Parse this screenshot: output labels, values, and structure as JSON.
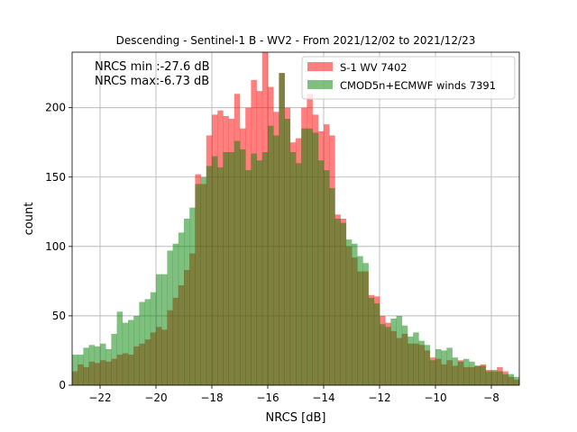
{
  "chart_data": {
    "type": "bar",
    "title": "Descending - Sentinel-1 B - WV2 - From 2021/12/02 to 2021/12/23",
    "xlabel": "NRCS [dB]",
    "ylabel": "count",
    "xlim": [
      -23.0,
      -7.0
    ],
    "ylim": [
      0,
      240
    ],
    "xticks": [
      -22,
      -20,
      -18,
      -16,
      -14,
      -12,
      -10,
      -8
    ],
    "xtick_labels": [
      "−22",
      "−20",
      "−18",
      "−16",
      "−14",
      "−12",
      "−10",
      "−8"
    ],
    "yticks": [
      0,
      50,
      100,
      150,
      200
    ],
    "ytick_labels": [
      "0",
      "50",
      "100",
      "150",
      "200"
    ],
    "grid": true,
    "legend_position": "top-right",
    "annotations": [
      "NRCS min :-27.6 dB",
      "NRCS max:-6.73 dB"
    ],
    "bin_width": 0.2,
    "x": [
      -22.9,
      -22.7,
      -22.5,
      -22.3,
      -22.1,
      -21.9,
      -21.7,
      -21.5,
      -21.3,
      -21.1,
      -20.9,
      -20.7,
      -20.5,
      -20.3,
      -20.1,
      -19.9,
      -19.7,
      -19.5,
      -19.3,
      -19.1,
      -18.9,
      -18.7,
      -18.5,
      -18.3,
      -18.1,
      -17.9,
      -17.7,
      -17.5,
      -17.3,
      -17.1,
      -16.9,
      -16.7,
      -16.5,
      -16.3,
      -16.1,
      -15.9,
      -15.7,
      -15.5,
      -15.3,
      -15.1,
      -14.9,
      -14.7,
      -14.5,
      -14.3,
      -14.1,
      -13.9,
      -13.7,
      -13.5,
      -13.3,
      -13.1,
      -12.9,
      -12.7,
      -12.5,
      -12.3,
      -12.1,
      -11.9,
      -11.7,
      -11.5,
      -11.3,
      -11.1,
      -10.9,
      -10.7,
      -10.5,
      -10.3,
      -10.1,
      -9.9,
      -9.7,
      -9.5,
      -9.3,
      -9.1,
      -8.9,
      -8.7,
      -8.5,
      -8.3,
      -8.1,
      -7.9,
      -7.7,
      -7.5,
      -7.3,
      -7.1
    ],
    "series": [
      {
        "name": "S-1 WV 7402",
        "color": "#ff7777",
        "values": [
          10,
          15,
          13,
          17,
          16,
          18,
          17,
          19,
          22,
          23,
          22,
          28,
          30,
          33,
          38,
          42,
          40,
          54,
          63,
          72,
          83,
          95,
          152,
          145,
          180,
          195,
          198,
          194,
          192,
          210,
          185,
          200,
          220,
          212,
          240,
          215,
          197,
          225,
          200,
          175,
          178,
          200,
          210,
          195,
          183,
          188,
          180,
          123,
          120,
          100,
          92,
          82,
          82,
          65,
          64,
          50,
          45,
          39,
          34,
          37,
          30,
          30,
          29,
          25,
          20,
          19,
          15,
          18,
          14,
          18,
          13,
          13,
          14,
          15,
          11,
          10,
          13,
          10,
          6,
          4
        ]
      },
      {
        "name": "CMOD5n+ECMWF winds 7391",
        "color": "#77b777",
        "values": [
          22,
          22,
          27,
          29,
          28,
          30,
          26,
          37,
          53,
          45,
          47,
          50,
          60,
          62,
          67,
          80,
          80,
          97,
          102,
          110,
          120,
          128,
          145,
          150,
          158,
          165,
          157,
          168,
          168,
          176,
          170,
          155,
          167,
          162,
          168,
          187,
          180,
          225,
          192,
          168,
          160,
          185,
          185,
          182,
          162,
          155,
          142,
          120,
          117,
          105,
          102,
          93,
          88,
          63,
          59,
          44,
          42,
          48,
          50,
          43,
          35,
          38,
          32,
          29,
          18,
          26,
          25,
          27,
          20,
          17,
          19,
          17,
          14,
          14,
          10,
          11,
          10,
          8,
          8,
          6
        ]
      }
    ]
  }
}
